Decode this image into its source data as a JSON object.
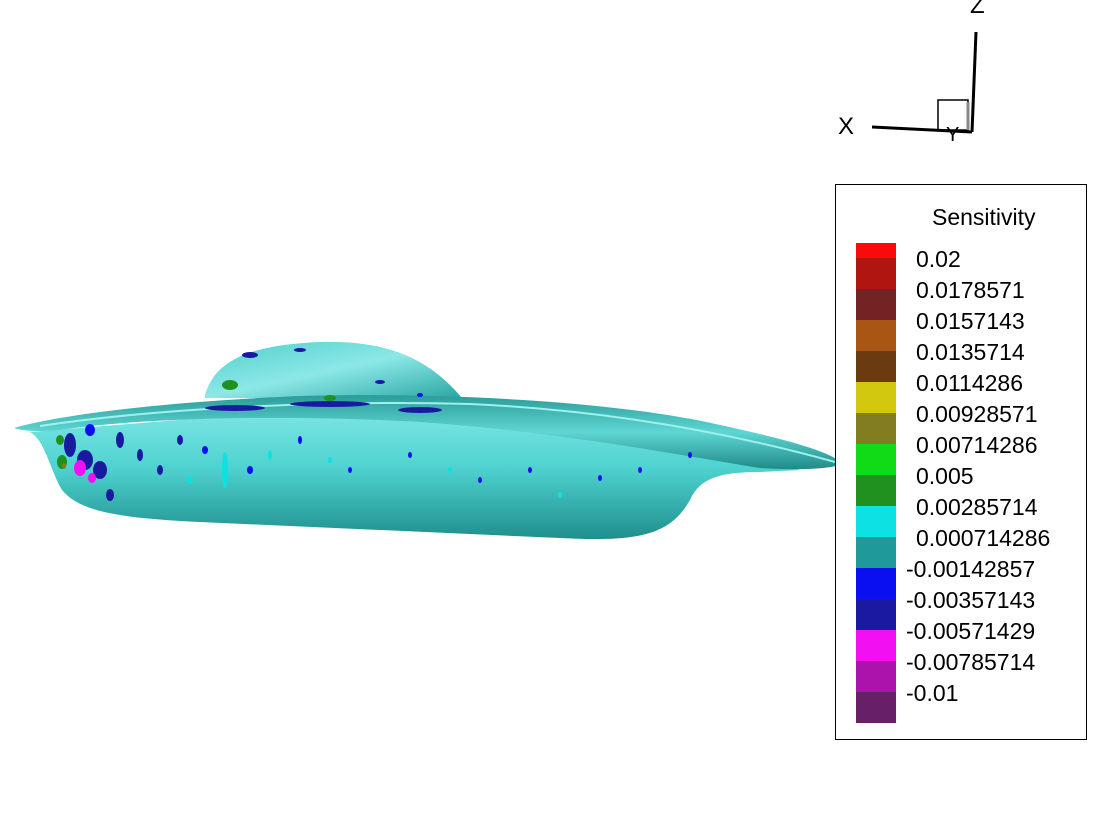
{
  "axes": {
    "x_label": "X",
    "y_label": "Y",
    "z_label": "Z"
  },
  "legend": {
    "title": "Sensitivity",
    "levels": [
      {
        "label": "0.02",
        "color": "#b0160f"
      },
      {
        "label": "0.0178571",
        "color": "#742324"
      },
      {
        "label": "0.0157143",
        "color": "#a95614"
      },
      {
        "label": "0.0135714",
        "color": "#6a3a10"
      },
      {
        "label": "0.0114286",
        "color": "#d2c90f"
      },
      {
        "label": "0.00928571",
        "color": "#827d21"
      },
      {
        "label": "0.00714286",
        "color": "#10db17"
      },
      {
        "label": "0.005",
        "color": "#20911f"
      },
      {
        "label": "0.00285714",
        "color": "#0ee1e1"
      },
      {
        "label": "0.000714286",
        "color": "#1f9999"
      },
      {
        "label": "-0.00142857",
        "color": "#0a0ff2"
      },
      {
        "label": "-0.00357143",
        "color": "#1a1aa0"
      },
      {
        "label": "-0.00571429",
        "color": "#f20ff2"
      },
      {
        "label": "-0.00785714",
        "color": "#ac12ac"
      },
      {
        "label": "-0.01",
        "color": "#672068"
      }
    ],
    "top_color": "#fa0a0a"
  },
  "model": {
    "base_color": "#3cc4c4"
  }
}
